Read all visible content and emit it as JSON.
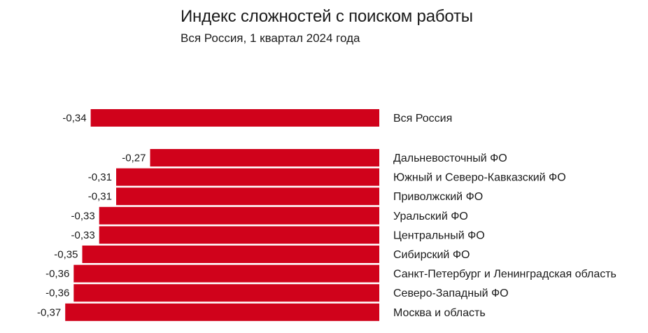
{
  "chart_data": {
    "type": "bar",
    "orientation": "horizontal",
    "title": "Индекс сложностей с поиском работы",
    "subtitle": "Вся Россия, 1 квартал 2024 года",
    "xlabel": "",
    "ylabel": "",
    "grid": false,
    "legend": "none",
    "bar_color": "#d0021b",
    "categories": [
      "Вся Россия",
      "Дальневосточный ФО",
      "Южный и Северо-Кавказский ФО",
      "Приволжский ФО",
      "Уральский ФО",
      "Центральный ФО",
      "Сибирский ФО",
      "Санкт-Петербург и Ленинградская область",
      "Северо-Западный ФО",
      "Москва и область"
    ],
    "values": [
      -0.34,
      -0.27,
      -0.31,
      -0.31,
      -0.33,
      -0.33,
      -0.35,
      -0.36,
      -0.36,
      -0.37
    ],
    "value_labels": [
      "-0,34",
      "-0,27",
      "-0,31",
      "-0,31",
      "-0,33",
      "-0,33",
      "-0,35",
      "-0,36",
      "-0,36",
      "-0,37"
    ]
  }
}
